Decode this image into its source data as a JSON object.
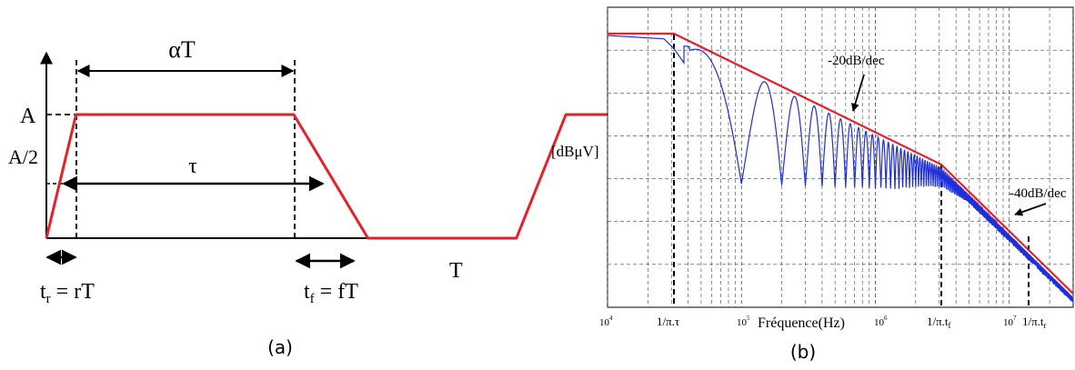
{
  "chart_data": [
    {
      "type": "line",
      "panel_label": "(a)",
      "series": [
        {
          "x": [
            0,
            0.12,
            1.0,
            1.3,
            1.9,
            2.1,
            2.3
          ],
          "y": [
            0,
            1,
            1,
            0,
            0,
            1,
            1
          ]
        }
      ],
      "color": "#e8202a",
      "labels": {
        "alpha_t": "αT",
        "tau": "τ",
        "a": "A",
        "a_half": "A/2",
        "t_period": "T",
        "tr_main": "t",
        "tr_sub": "r",
        "tr_rest": " = rT",
        "tf_main": "t",
        "tf_sub": "f",
        "tf_rest": " = fT"
      }
    },
    {
      "type": "line",
      "panel_label": "(b)",
      "xscale": "log",
      "xlim": [
        10000,
        30000000
      ],
      "xticks": [
        "10",
        "10",
        "10",
        "10"
      ],
      "xtick_exponents": [
        "4",
        "5",
        "6",
        "7"
      ],
      "xlabel": "Fréquence(Hz)",
      "ylabel": "[dBμV]",
      "grid": true,
      "series": [
        {
          "role": "envelope",
          "color": "#e8202a"
        },
        {
          "role": "spectrum",
          "color": "#1f2fd6"
        }
      ],
      "annotations": {
        "slope1": "-20dB/dec",
        "slope2": "-40dB/dec",
        "pi_tau": "1/π.τ",
        "pi_tf_main": "1/π.t",
        "pi_tf_sub": "f",
        "pi_tr_main": "1/π.t",
        "pi_tr_sub": "r"
      }
    }
  ]
}
